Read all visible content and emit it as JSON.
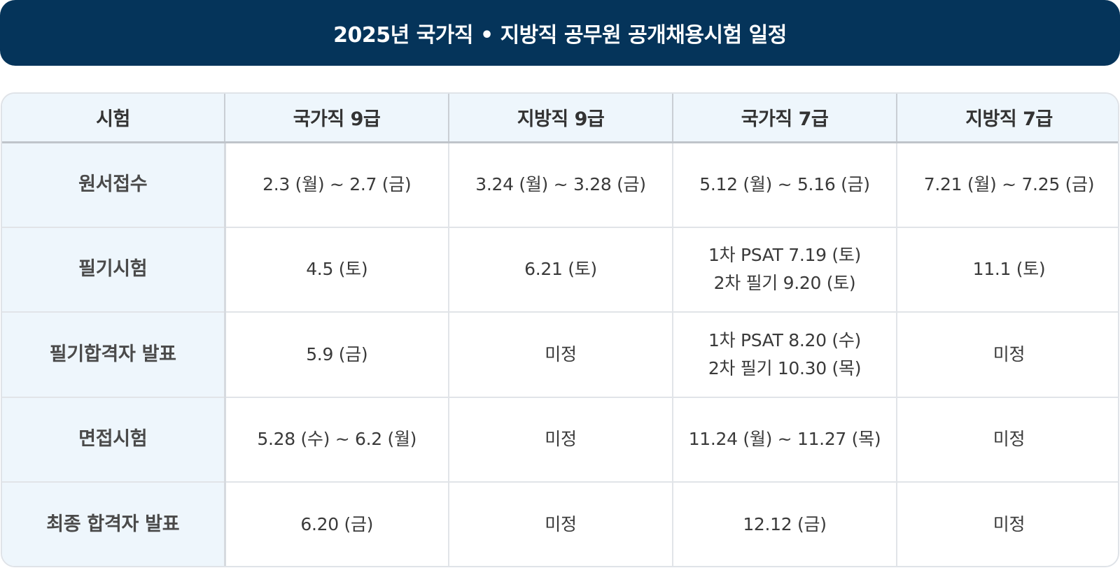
{
  "banner": {
    "title": "2025년 국가직 • 지방직 공무원 공개채용시험 일정"
  },
  "table": {
    "headers": [
      "시험",
      "국가직 9급",
      "지방직 9급",
      "국가직 7급",
      "지방직 7급"
    ],
    "rows": [
      {
        "label": "원서접수",
        "cells": [
          [
            "2.3 (월) ~ 2.7 (금)"
          ],
          [
            "3.24 (월) ~ 3.28 (금)"
          ],
          [
            "5.12 (월) ~ 5.16 (금)"
          ],
          [
            "7.21 (월) ~ 7.25 (금)"
          ]
        ]
      },
      {
        "label": "필기시험",
        "cells": [
          [
            "4.5 (토)"
          ],
          [
            "6.21 (토)"
          ],
          [
            "1차 PSAT 7.19 (토)",
            "2차 필기 9.20 (토)"
          ],
          [
            "11.1 (토)"
          ]
        ]
      },
      {
        "label": "필기합격자 발표",
        "cells": [
          [
            "5.9 (금)"
          ],
          [
            "미정"
          ],
          [
            "1차 PSAT 8.20 (수)",
            "2차 필기 10.30 (목)"
          ],
          [
            "미정"
          ]
        ]
      },
      {
        "label": "면접시험",
        "cells": [
          [
            "5.28 (수) ~ 6.2 (월)"
          ],
          [
            "미정"
          ],
          [
            "11.24 (월) ~ 11.27 (목)"
          ],
          [
            "미정"
          ]
        ]
      },
      {
        "label": "최종 합격자 발표",
        "cells": [
          [
            "6.20 (금)"
          ],
          [
            "미정"
          ],
          [
            "12.12 (금)"
          ],
          [
            "미정"
          ]
        ]
      }
    ]
  },
  "colors": {
    "banner_bg": "#05345a",
    "header_bg": "#eef6fc",
    "border": "#e1e4e8"
  }
}
